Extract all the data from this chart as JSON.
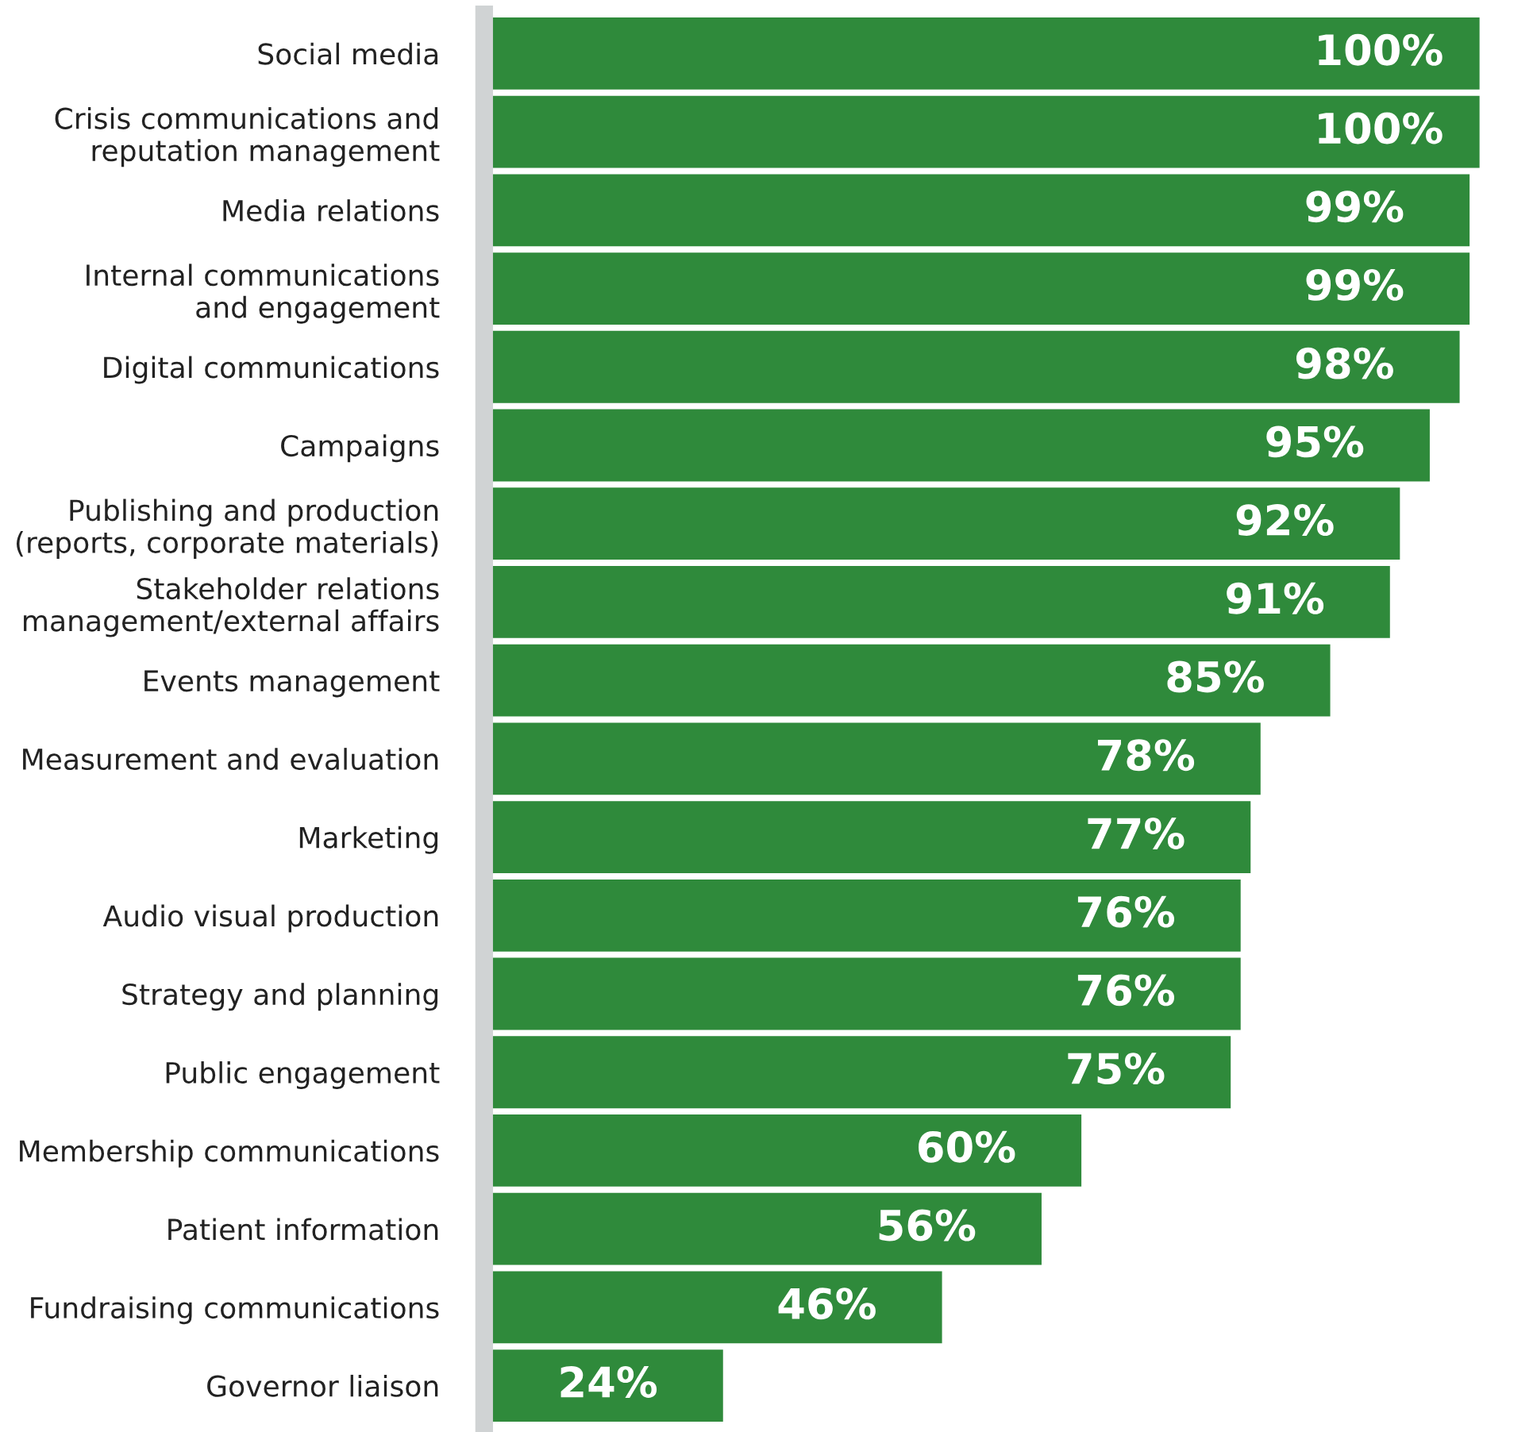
{
  "chart_data": {
    "type": "bar",
    "orientation": "horizontal",
    "color": "#2f8a3b",
    "categories": [
      "Social media",
      "Crisis communications and\nreputation management",
      "Media relations",
      "Internal communications\nand engagement",
      "Digital communications",
      "Campaigns",
      "Publishing and production\n(reports, corporate materials)",
      "Stakeholder relations\nmanagement/external affairs",
      "Events management",
      "Measurement and evaluation",
      "Marketing",
      "Audio visual production",
      "Strategy and planning",
      "Public engagement",
      "Membership communications",
      "Patient information",
      "Fundraising communications",
      "Governor liaison"
    ],
    "values": [
      100,
      100,
      99,
      99,
      98,
      95,
      92,
      91,
      85,
      78,
      77,
      76,
      76,
      75,
      60,
      56,
      46,
      24
    ],
    "value_labels": [
      "100%",
      "100%",
      "99%",
      "99%",
      "98%",
      "95%",
      "92%",
      "91%",
      "85%",
      "78%",
      "77%",
      "76%",
      "76%",
      "75%",
      "60%",
      "56%",
      "46%",
      "24%"
    ],
    "tick_labels": "y",
    "grid": false,
    "legend": false
  }
}
